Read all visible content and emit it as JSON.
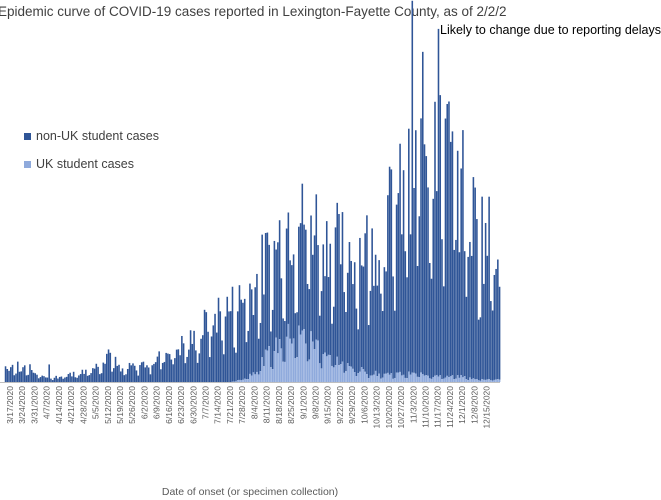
{
  "chart_data": {
    "type": "bar",
    "stacked": true,
    "title": "Epidemic curve of COVID-19 cases reported in Lexington-Fayette County, as of 2/2/2",
    "annotation": "Likely to change due to reporting delays",
    "xlabel": "Date of onset (or specimen collection)",
    "ylabel": "",
    "legend_position": "upper-left",
    "grid": false,
    "series": [
      {
        "name": "non-UK student cases",
        "color": "#2F5597"
      },
      {
        "name": "UK student cases",
        "color": "#8FAADC"
      }
    ],
    "x_tick_labels": [
      "3/17/2020",
      "3/24/2020",
      "3/31/2020",
      "4/7/2020",
      "4/14/2020",
      "4/21/2020",
      "4/28/2020",
      "5/5/2020",
      "5/12/2020",
      "5/19/2020",
      "5/26/2020",
      "6/2/2020",
      "6/9/2020",
      "6/16/2020",
      "6/23/2020",
      "6/30/2020",
      "7/7/2020",
      "7/14/2020",
      "7/21/2020",
      "7/28/2020",
      "8/4/2020",
      "8/11/2020",
      "8/18/2020",
      "8/25/2020",
      "9/1/2020",
      "9/8/2020",
      "9/15/2020",
      "9/22/2020",
      "9/29/2020",
      "10/6/2020",
      "10/13/2020",
      "10/20/2020",
      "10/27/2020",
      "11/3/2020",
      "11/10/2020",
      "11/17/2020",
      "11/24/2020",
      "12/1/2020",
      "12/8/2020",
      "12/15/2020"
    ],
    "weekly_profile": {
      "note": "approximate relative case counts per week (0-100 scale), one entry per tick week",
      "non_uk": [
        6,
        5,
        3,
        2,
        2,
        3,
        4,
        6,
        12,
        4,
        6,
        7,
        9,
        12,
        14,
        16,
        22,
        26,
        28,
        30,
        34,
        36,
        40,
        42,
        44,
        46,
        44,
        44,
        45,
        48,
        52,
        60,
        66,
        88,
        92,
        100,
        80,
        70,
        60,
        54
      ],
      "uk": [
        0,
        0,
        0,
        0,
        0,
        0,
        0,
        0,
        0,
        0,
        0,
        0,
        0,
        0,
        0,
        0,
        0,
        0,
        0,
        1,
        4,
        10,
        14,
        18,
        17,
        14,
        10,
        7,
        5,
        4,
        3,
        3,
        3,
        3,
        3,
        2,
        2,
        2,
        1,
        1
      ]
    }
  }
}
